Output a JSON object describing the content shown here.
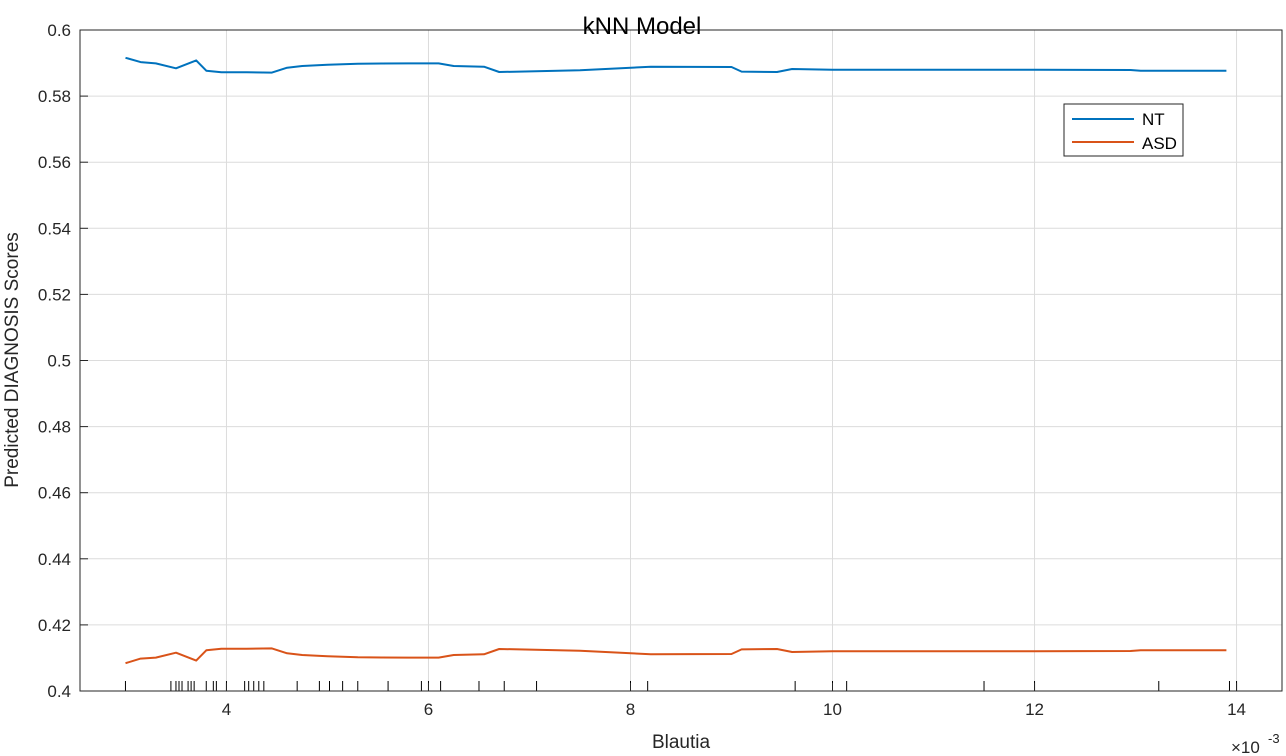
{
  "chart_data": {
    "type": "line",
    "title": "kNN Model",
    "xlabel": "Blautia",
    "ylabel": "Predicted DIAGNOSIS Scores",
    "x_exponent_label": "×10",
    "x_exponent_power": "-3",
    "xlim": [
      2.55,
      14.45
    ],
    "ylim": [
      0.4,
      0.6
    ],
    "x_ticks": [
      4,
      6,
      8,
      10,
      12,
      14
    ],
    "x_tick_labels": [
      "4",
      "6",
      "8",
      "10",
      "12",
      "14"
    ],
    "y_ticks": [
      0.4,
      0.42,
      0.44,
      0.46,
      0.48,
      0.5,
      0.52,
      0.54,
      0.56,
      0.58,
      0.6
    ],
    "y_tick_labels": [
      "0.4",
      "0.42",
      "0.44",
      "0.46",
      "0.48",
      "0.5",
      "0.52",
      "0.54",
      "0.56",
      "0.58",
      "0.6"
    ],
    "grid": true,
    "legend_position": "top-right",
    "series": [
      {
        "name": "NT",
        "color": "#0072BD",
        "x": [
          3.0,
          3.15,
          3.3,
          3.5,
          3.7,
          3.8,
          3.95,
          4.2,
          4.45,
          4.6,
          4.75,
          5.0,
          5.3,
          5.8,
          6.1,
          6.25,
          6.55,
          6.7,
          6.9,
          7.5,
          8.2,
          9.0,
          9.1,
          9.45,
          9.6,
          10.0,
          11.0,
          12.0,
          12.95,
          13.05,
          13.9
        ],
        "y": [
          0.5916,
          0.5903,
          0.5899,
          0.5884,
          0.5908,
          0.5877,
          0.5872,
          0.5872,
          0.5871,
          0.5886,
          0.5891,
          0.5895,
          0.5898,
          0.5899,
          0.5899,
          0.5891,
          0.5889,
          0.5873,
          0.5874,
          0.5878,
          0.5889,
          0.5888,
          0.5874,
          0.5873,
          0.5882,
          0.588,
          0.588,
          0.588,
          0.5879,
          0.5877,
          0.5877
        ]
      },
      {
        "name": "ASD",
        "color": "#D95319",
        "x": [
          3.0,
          3.15,
          3.3,
          3.5,
          3.7,
          3.8,
          3.95,
          4.2,
          4.45,
          4.6,
          4.75,
          5.0,
          5.3,
          5.8,
          6.1,
          6.25,
          6.55,
          6.7,
          6.9,
          7.5,
          8.2,
          9.0,
          9.1,
          9.45,
          9.6,
          10.0,
          11.0,
          12.0,
          12.95,
          13.05,
          13.9
        ],
        "y": [
          0.4084,
          0.4098,
          0.4101,
          0.4116,
          0.4092,
          0.4123,
          0.4128,
          0.4128,
          0.4129,
          0.4114,
          0.4109,
          0.4105,
          0.4102,
          0.4101,
          0.4101,
          0.4109,
          0.4111,
          0.4127,
          0.4126,
          0.4122,
          0.4111,
          0.4112,
          0.4126,
          0.4127,
          0.4118,
          0.412,
          0.412,
          0.412,
          0.4121,
          0.4123,
          0.4123
        ]
      }
    ],
    "rug_x": [
      3.0,
      3.45,
      3.5,
      3.53,
      3.56,
      3.62,
      3.65,
      3.68,
      3.8,
      3.87,
      3.9,
      4.0,
      4.18,
      4.22,
      4.27,
      4.32,
      4.37,
      4.7,
      4.92,
      5.02,
      5.15,
      5.3,
      5.6,
      5.93,
      6.0,
      6.12,
      6.5,
      6.75,
      7.07,
      8.0,
      8.17,
      9.63,
      10.0,
      10.14,
      11.5,
      12.0,
      13.23,
      13.93,
      14.0
    ]
  }
}
